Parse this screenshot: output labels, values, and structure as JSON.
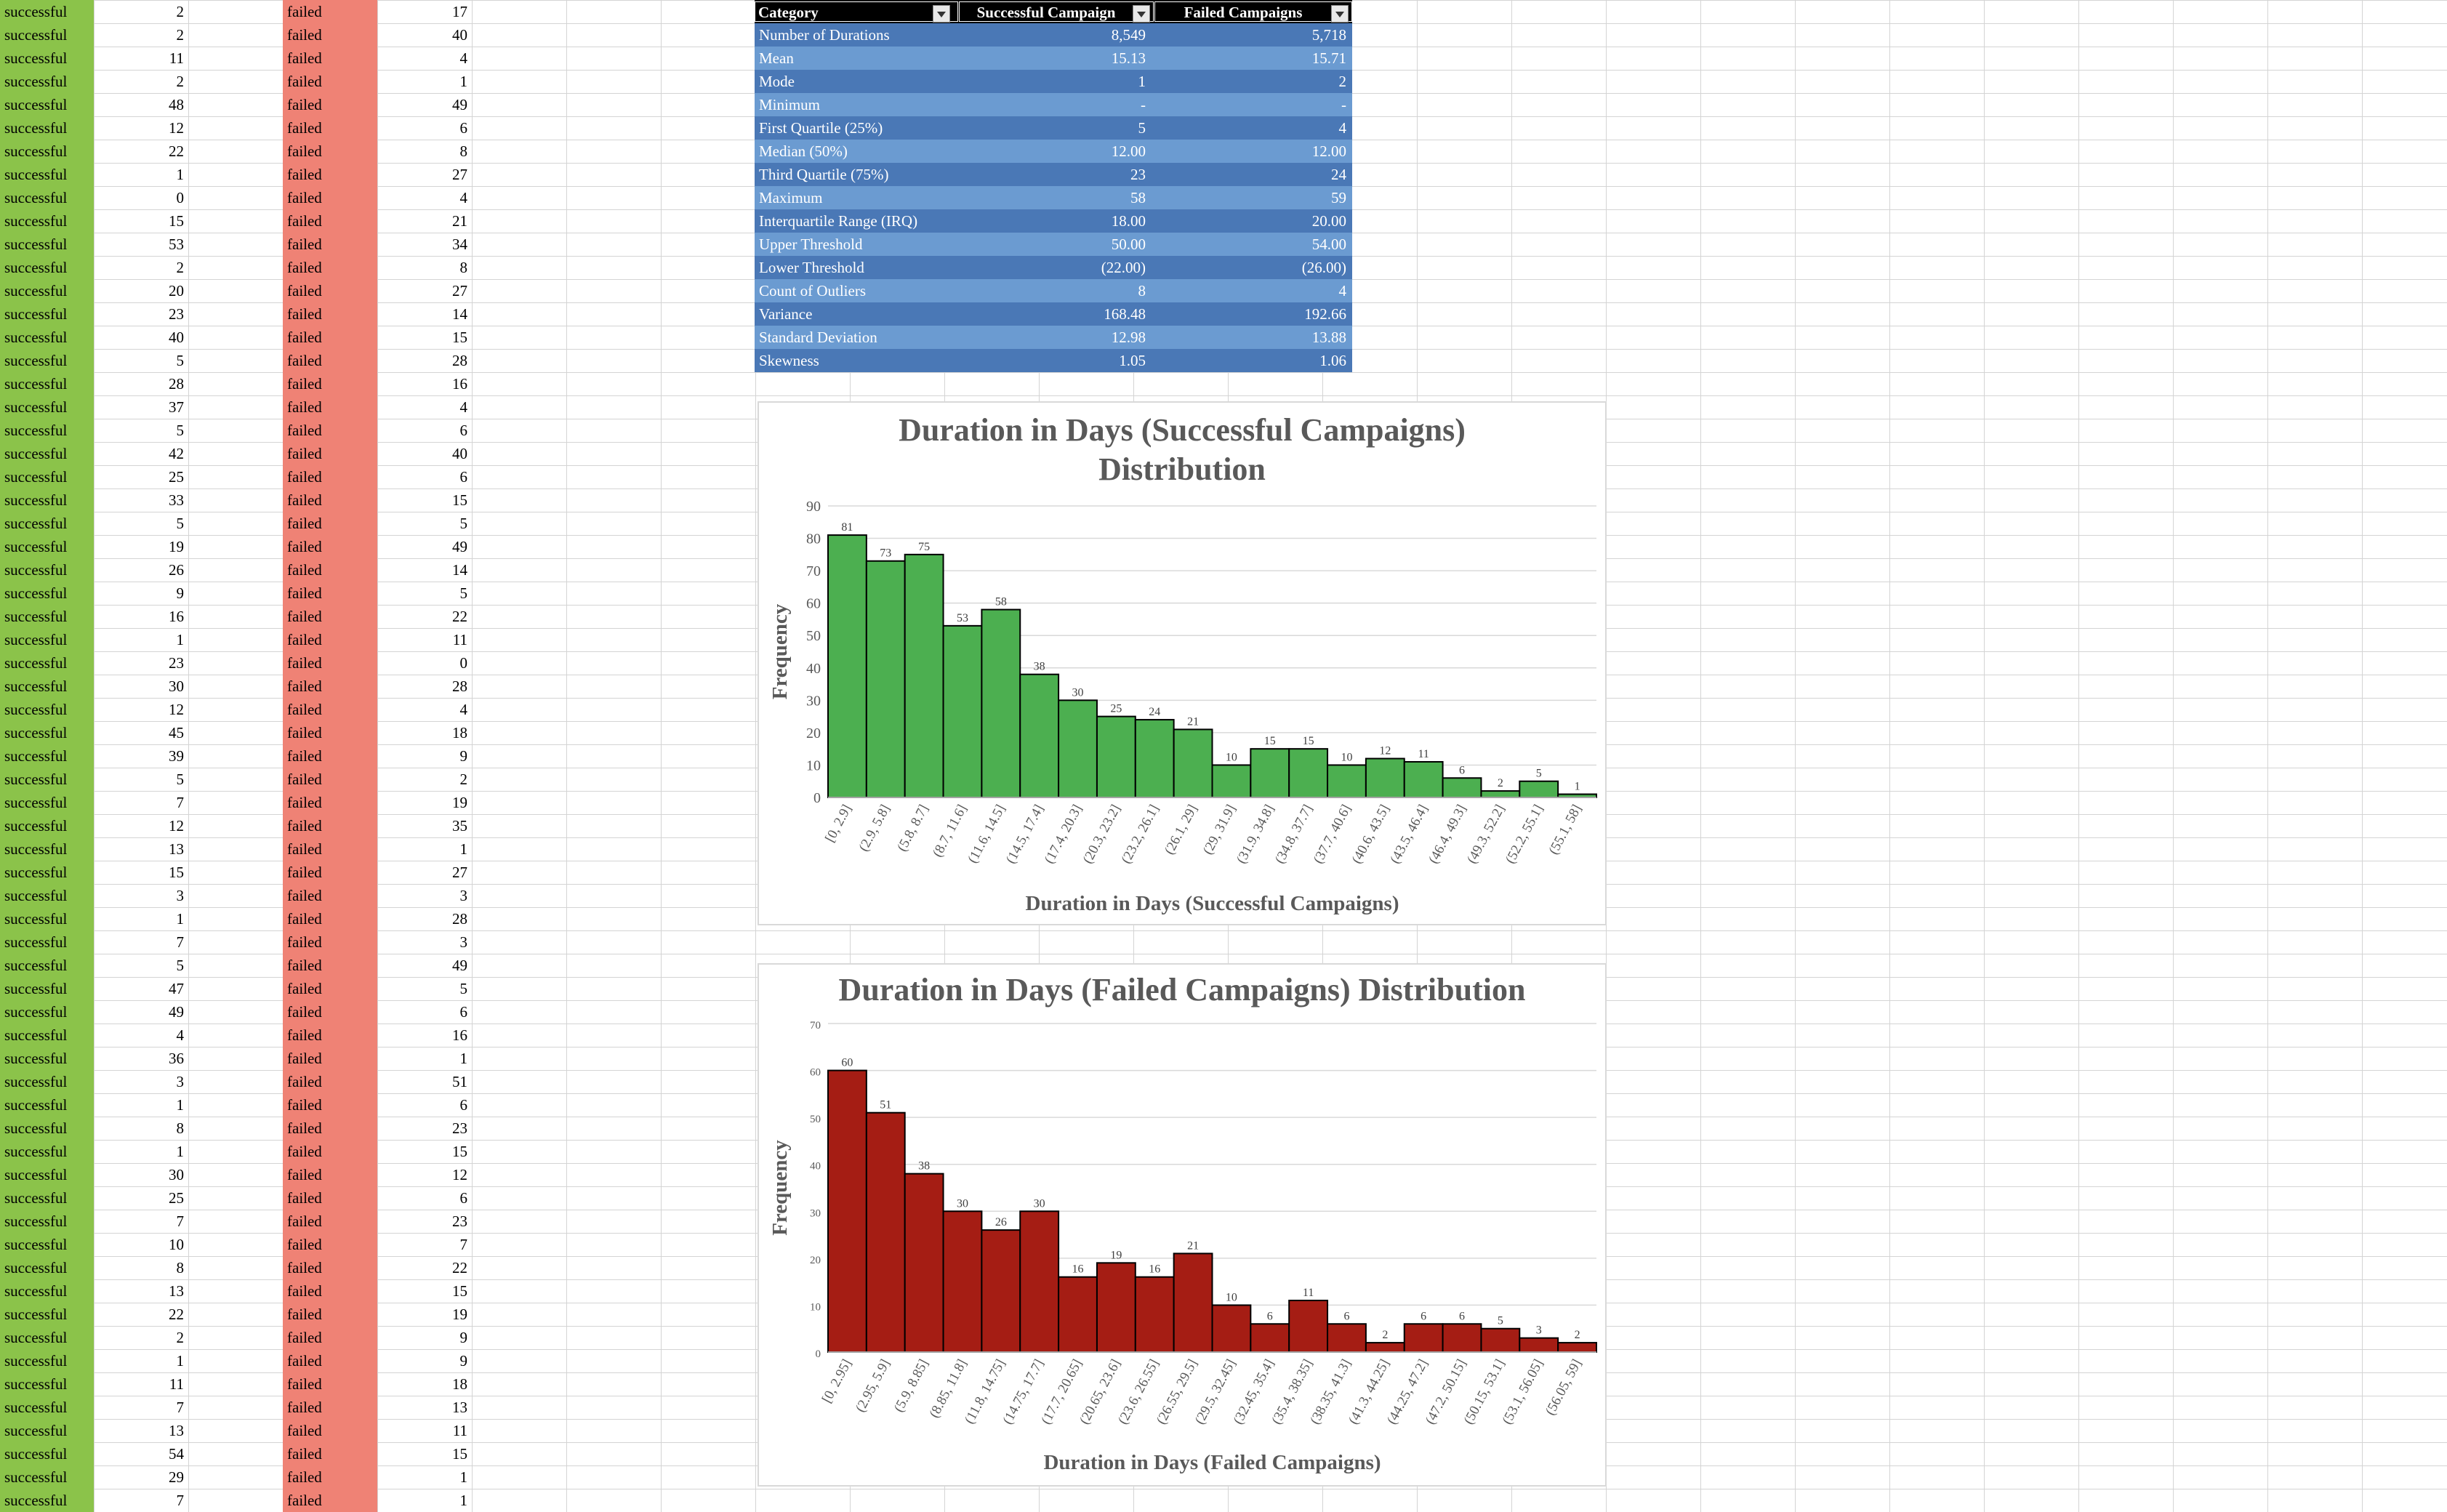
{
  "sheet": {
    "status_labels": {
      "success": "successful",
      "fail": "failed"
    },
    "success_durations": [
      2,
      2,
      11,
      2,
      48,
      12,
      22,
      1,
      0,
      15,
      53,
      2,
      20,
      23,
      40,
      5,
      28,
      37,
      5,
      42,
      25,
      33,
      5,
      19,
      26,
      9,
      16,
      1,
      23,
      30,
      12,
      45,
      39,
      5,
      7,
      12,
      13,
      15,
      3,
      1,
      7,
      5,
      47,
      49,
      4,
      36,
      3,
      1,
      8,
      1,
      30,
      25,
      7,
      10,
      8,
      13,
      22,
      2,
      1,
      11,
      7,
      13,
      54,
      29,
      7
    ],
    "fail_durations": [
      17,
      40,
      4,
      1,
      49,
      6,
      8,
      27,
      4,
      21,
      34,
      8,
      27,
      14,
      15,
      28,
      16,
      4,
      6,
      40,
      6,
      15,
      5,
      49,
      14,
      5,
      22,
      11,
      0,
      28,
      4,
      18,
      9,
      2,
      19,
      35,
      1,
      27,
      3,
      28,
      3,
      49,
      5,
      6,
      16,
      1,
      51,
      6,
      23,
      15,
      12,
      6,
      23,
      7,
      22,
      15,
      19,
      9,
      9,
      18,
      13,
      11,
      15,
      1,
      1
    ]
  },
  "stats_table": {
    "headers": [
      "Category",
      "Successful Campaign",
      "Failed Campaigns"
    ],
    "rows": [
      [
        "Number of Durations",
        "8,549",
        "5,718"
      ],
      [
        "Mean",
        "15.13",
        "15.71"
      ],
      [
        "Mode",
        "1",
        "2"
      ],
      [
        "Minimum",
        "-",
        "-"
      ],
      [
        "First Quartile (25%)",
        "5",
        "4"
      ],
      [
        "Median (50%)",
        "12.00",
        "12.00"
      ],
      [
        "Third Quartile (75%)",
        "23",
        "24"
      ],
      [
        "Maximum",
        "58",
        "59"
      ],
      [
        "Interquartile Range (IRQ)",
        "18.00",
        "20.00"
      ],
      [
        "Upper Threshold",
        "50.00",
        "54.00"
      ],
      [
        "Lower Threshold",
        "(22.00)",
        "(26.00)"
      ],
      [
        "Count of Outliers",
        "8",
        "4"
      ],
      [
        "Variance",
        "168.48",
        "192.66"
      ],
      [
        "Standard Deviation",
        "12.98",
        "13.88"
      ],
      [
        "Skewness",
        "1.05",
        "1.06"
      ]
    ]
  },
  "chart_data": [
    {
      "type": "bar",
      "title": "Duration in Days (Successful Campaigns) Distribution",
      "title_lines": [
        "Duration in Days (Successful Campaigns)",
        "Distribution"
      ],
      "xlabel": "Duration in Days (Successful Campaigns)",
      "ylabel": "Frequency",
      "ylim": [
        0,
        90
      ],
      "yticks": [
        0,
        10,
        20,
        30,
        40,
        50,
        60,
        70,
        80,
        90
      ],
      "color": "#4caf50",
      "categories": [
        "[0, 2.9]",
        "(2.9, 5.8]",
        "(5.8, 8.7]",
        "(8.7, 11.6]",
        "(11.6, 14.5]",
        "(14.5, 17.4]",
        "(17.4, 20.3]",
        "(20.3, 23.2]",
        "(23.2, 26.1]",
        "(26.1, 29]",
        "(29, 31.9]",
        "(31.9, 34.8]",
        "(34.8, 37.7]",
        "(37.7, 40.6]",
        "(40.6, 43.5]",
        "(43.5, 46.4]",
        "(46.4, 49.3]",
        "(49.3, 52.2]",
        "(52.2, 55.1]",
        "(55.1, 58]"
      ],
      "values": [
        81,
        73,
        75,
        53,
        58,
        38,
        30,
        25,
        24,
        21,
        10,
        15,
        15,
        10,
        12,
        11,
        6,
        2,
        5,
        1
      ]
    },
    {
      "type": "bar",
      "title": "Duration in Days (Failed Campaigns) Distribution",
      "title_lines": [
        "Duration in Days (Failed Campaigns) Distribution"
      ],
      "xlabel": "Duration in Days (Failed Campaigns)",
      "ylabel": "Frequency",
      "ylim": [
        0,
        70
      ],
      "yticks": [
        0,
        10,
        20,
        30,
        40,
        50,
        60,
        70
      ],
      "color": "#a51d14",
      "categories": [
        "[0, 2.95]",
        "(2.95, 5.9]",
        "(5.9, 8.85]",
        "(8.85, 11.8]",
        "(11.8, 14.75]",
        "(14.75, 17.7]",
        "(17.7, 20.65]",
        "(20.65, 23.6]",
        "(23.6, 26.55]",
        "(26.55, 29.5]",
        "(29.5, 32.45]",
        "(32.45, 35.4]",
        "(35.4, 38.35]",
        "(38.35, 41.3]",
        "(41.3, 44.25]",
        "(44.25, 47.2]",
        "(47.2, 50.15]",
        "(50.15, 53.1]",
        "(53.1, 56.05]",
        "(56.05, 59]"
      ],
      "values": [
        60,
        51,
        38,
        30,
        26,
        30,
        16,
        19,
        16,
        21,
        10,
        6,
        11,
        6,
        2,
        6,
        6,
        5,
        3,
        2
      ]
    }
  ]
}
